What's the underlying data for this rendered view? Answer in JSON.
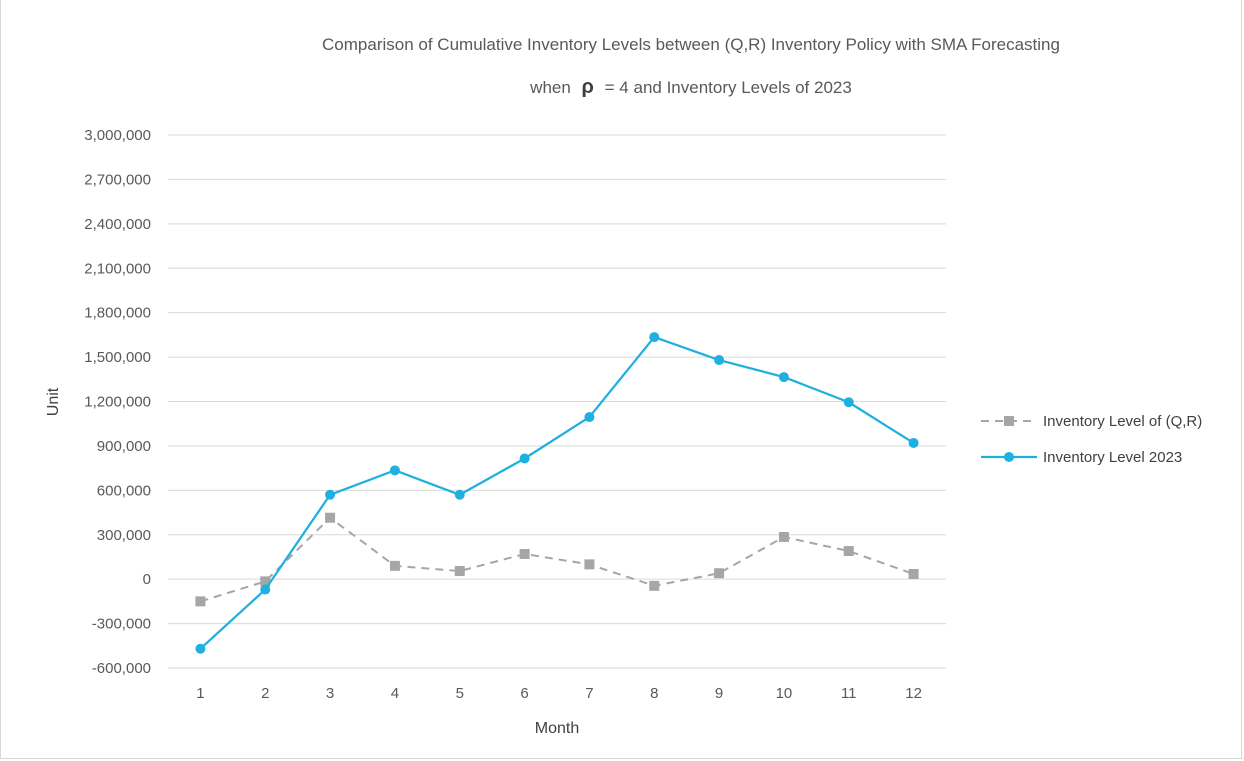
{
  "chart_data": {
    "type": "line",
    "title_line1": "Comparison of Cumulative Inventory Levels between (Q,R) Inventory Policy with SMA Forecasting",
    "title_line2_prefix": "when",
    "title_line2_symbol": "ρ",
    "title_line2_suffix": "= 4 and Inventory Levels of 2023",
    "xlabel": "Month",
    "ylabel": "Unit",
    "ylim": [
      -600000,
      3000000
    ],
    "y_ticks": [
      3000000,
      2700000,
      2400000,
      2100000,
      1800000,
      1500000,
      1200000,
      900000,
      600000,
      300000,
      0,
      -300000,
      -600000
    ],
    "y_tick_labels": [
      "3,000,000",
      "2,700,000",
      "2,400,000",
      "2,100,000",
      "1,800,000",
      "1,500,000",
      "1,200,000",
      "900,000",
      "600,000",
      "300,000",
      "0",
      "-300,000",
      "-600,000"
    ],
    "categories": [
      "1",
      "2",
      "3",
      "4",
      "5",
      "6",
      "7",
      "8",
      "9",
      "10",
      "11",
      "12"
    ],
    "grid": true,
    "legend_position": "right",
    "series": [
      {
        "name": "Inventory Level of (Q,R)",
        "color": "#a6a6a6",
        "line_style": "dashed",
        "marker": "square",
        "values": [
          -150000,
          -15000,
          415000,
          90000,
          55000,
          170000,
          100000,
          -45000,
          40000,
          285000,
          190000,
          35000
        ]
      },
      {
        "name": "Inventory Level 2023",
        "color": "#1fb0e0",
        "line_style": "solid",
        "marker": "circle",
        "values": [
          -470000,
          -70000,
          570000,
          735000,
          570000,
          815000,
          1095000,
          1635000,
          1480000,
          1365000,
          1195000,
          920000
        ]
      }
    ]
  }
}
